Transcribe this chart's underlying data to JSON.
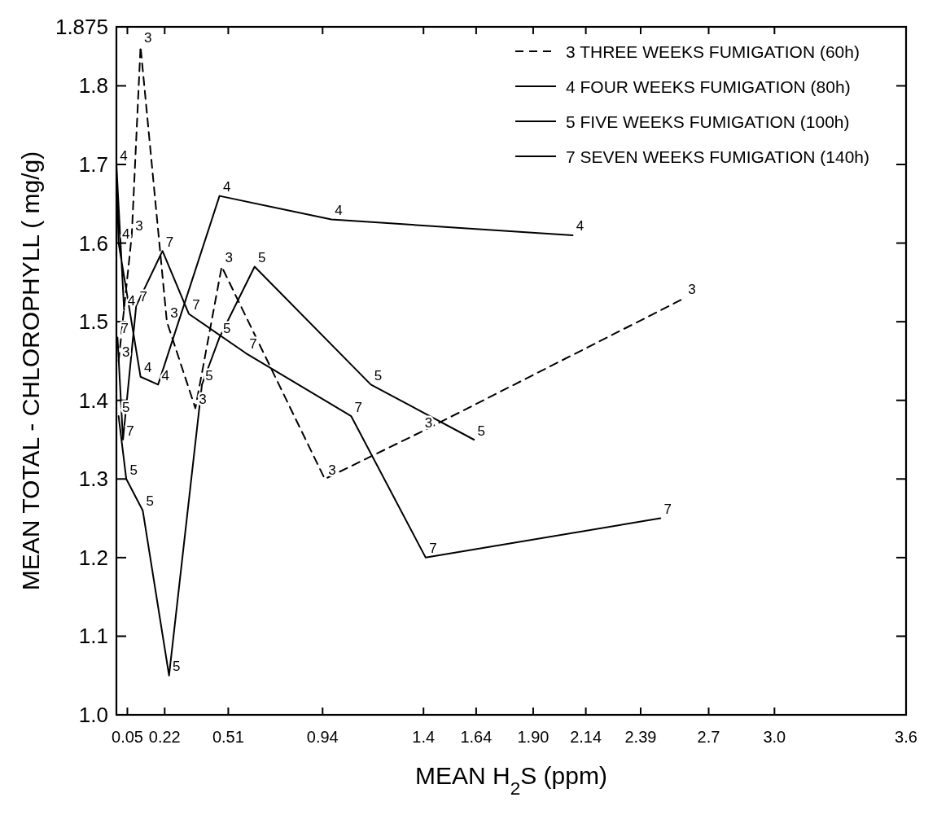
{
  "chart_data": {
    "type": "line",
    "xlabel": "MEAN H$_{2}$S (ppm)",
    "ylabel": "MEAN TOTAL - CHLOROPHYLL ( mg/g)",
    "xlim": [
      0,
      3.6
    ],
    "xticks": [
      0.05,
      0.22,
      0.51,
      0.94,
      1.4,
      1.64,
      {
        "value": 1.9,
        "label": "1.90"
      },
      2.14,
      2.39,
      2.7,
      {
        "value": 3,
        "label": "3.0"
      },
      3.6
    ],
    "ylim": [
      1,
      1.875
    ],
    "yticks": [
      {
        "value": 1,
        "label": "1.0"
      },
      1.1,
      1.2,
      1.3,
      1.4,
      1.5,
      1.6,
      1.7,
      1.8,
      1.875
    ],
    "legend": "top right",
    "grid": false,
    "series": [
      {
        "name": "3 THREE WEEKS FUMIGATION (60h)",
        "color": "#000000",
        "line_style": "dashed",
        "x": [
          0.01,
          0.07,
          0.11,
          0.23,
          0.36,
          0.48,
          0.95,
          1.39,
          2.59
        ],
        "values": [
          1.45,
          1.61,
          1.85,
          1.5,
          1.39,
          1.57,
          1.3,
          1.36,
          1.53
        ]
      },
      {
        "name": "4 FOUR WEEKS FUMIGATION (80h)",
        "color": "#000000",
        "line_style": "solid",
        "x": [
          0.035,
          0,
          0.01,
          0.11,
          0.19,
          0.47,
          0.98,
          2.08
        ],
        "values": [
          1.515,
          1.7,
          1.6,
          1.43,
          1.42,
          1.66,
          1.63,
          1.61
        ]
      },
      {
        "name": "5 FIVE WEEKS FUMIGATION (100h)",
        "color": "#000000",
        "line_style": "solid",
        "x": [
          0.01,
          0.045,
          0.12,
          0.24,
          0.39,
          0.47,
          0.63,
          1.16,
          1.63
        ],
        "values": [
          1.38,
          1.3,
          1.26,
          1.05,
          1.42,
          1.48,
          1.57,
          1.42,
          1.35
        ]
      },
      {
        "name": "7 SEVEN WEEKS FUMIGATION (140h)",
        "color": "#000000",
        "line_style": "solid",
        "x": [
          0.005,
          0.03,
          0.09,
          0.21,
          0.33,
          0.59,
          1.07,
          1.41,
          2.48
        ],
        "values": [
          1.48,
          1.35,
          1.52,
          1.59,
          1.51,
          1.46,
          1.38,
          1.2,
          1.25
        ]
      }
    ],
    "annotations": [
      {
        "text": "3",
        "x": 0.01,
        "y": 1.45
      },
      {
        "text": "3",
        "x": 0.07,
        "y": 1.61
      },
      {
        "text": "3",
        "x": 0.11,
        "y": 1.85
      },
      {
        "text": "3",
        "x": 0.23,
        "y": 1.5
      },
      {
        "text": "3",
        "x": 0.36,
        "y": 1.39
      },
      {
        "text": "3",
        "x": 0.48,
        "y": 1.57
      },
      {
        "text": "3",
        "x": 0.95,
        "y": 1.3
      },
      {
        "text": "3",
        "x": 1.39,
        "y": 1.36
      },
      {
        "text": "3",
        "x": 2.59,
        "y": 1.53
      },
      {
        "text": "4",
        "x": 0.035,
        "y": 1.515
      },
      {
        "text": "4",
        "x": 0,
        "y": 1.7
      },
      {
        "text": "4",
        "x": 0.01,
        "y": 1.6
      },
      {
        "text": "4",
        "x": 0.11,
        "y": 1.43
      },
      {
        "text": "4",
        "x": 0.19,
        "y": 1.42
      },
      {
        "text": "4",
        "x": 0.47,
        "y": 1.66
      },
      {
        "text": "4",
        "x": 0.98,
        "y": 1.63
      },
      {
        "text": "4",
        "x": 2.08,
        "y": 1.61
      },
      {
        "text": "5",
        "x": 0.01,
        "y": 1.38
      },
      {
        "text": "5",
        "x": 0.045,
        "y": 1.3
      },
      {
        "text": "5",
        "x": 0.12,
        "y": 1.26
      },
      {
        "text": "5",
        "x": 0.24,
        "y": 1.05
      },
      {
        "text": "5",
        "x": 0.39,
        "y": 1.42
      },
      {
        "text": "5",
        "x": 0.47,
        "y": 1.48
      },
      {
        "text": "5",
        "x": 0.63,
        "y": 1.57
      },
      {
        "text": "5",
        "x": 1.16,
        "y": 1.42
      },
      {
        "text": "5",
        "x": 1.63,
        "y": 1.35
      },
      {
        "text": "7",
        "x": 0.005,
        "y": 1.48
      },
      {
        "text": "7",
        "x": 0.03,
        "y": 1.35
      },
      {
        "text": "7",
        "x": 0.09,
        "y": 1.52
      },
      {
        "text": "7",
        "x": 0.21,
        "y": 1.59
      },
      {
        "text": "7",
        "x": 0.33,
        "y": 1.51
      },
      {
        "text": "7",
        "x": 0.59,
        "y": 1.46
      },
      {
        "text": "7",
        "x": 1.07,
        "y": 1.38
      },
      {
        "text": "7",
        "x": 1.41,
        "y": 1.2
      },
      {
        "text": "7",
        "x": 2.48,
        "y": 1.25
      }
    ]
  }
}
